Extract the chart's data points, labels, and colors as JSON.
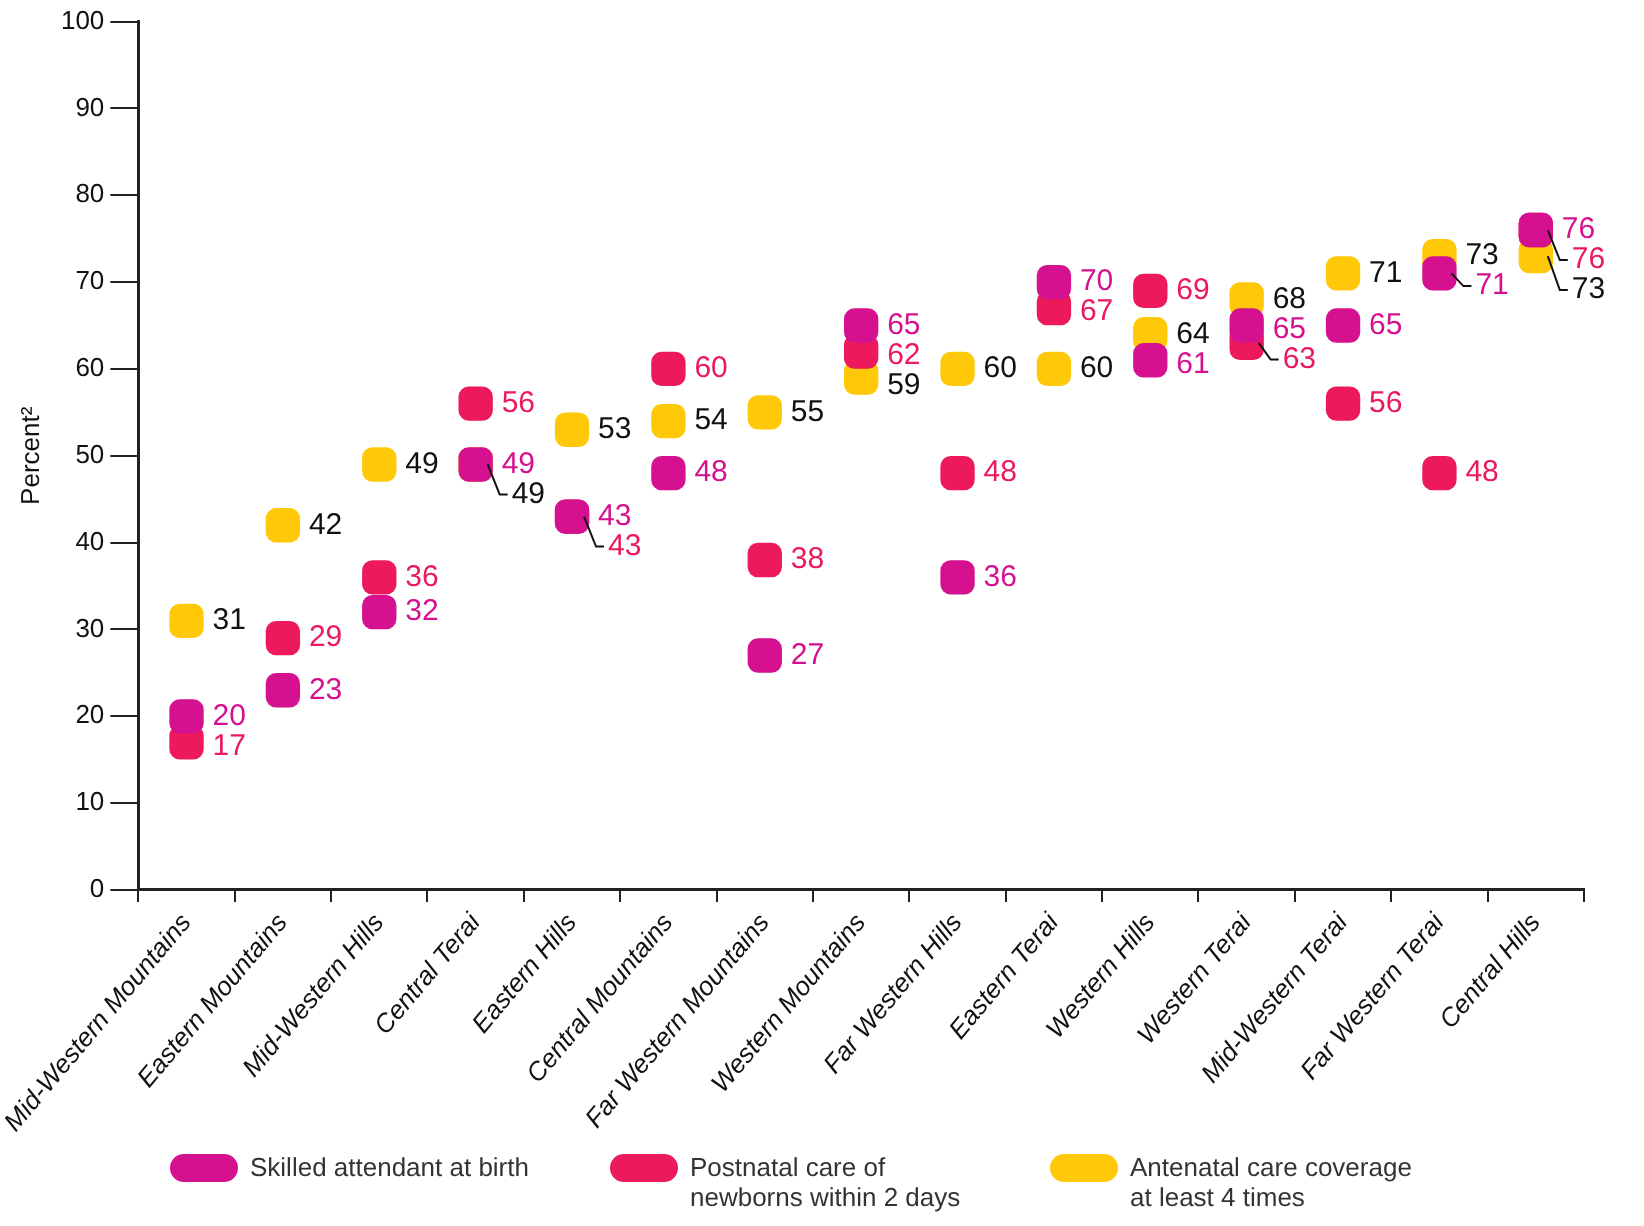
{
  "chart_data": {
    "type": "scatter",
    "ylabel": "Percent²",
    "categories": [
      "Mid-Western Mountains",
      "Eastern Mountains",
      "Mid-Western Hills",
      "Central Terai",
      "Eastern Hills",
      "Central Mountains",
      "Far Western Mountains",
      "Western Mountains",
      "Far Western Hills",
      "Eastern Terai",
      "Western Hills",
      "Western Terai",
      "Mid-Western Terai",
      "Far Western Terai",
      "Central Hills"
    ],
    "series": [
      {
        "name": "Skilled attendant at birth",
        "color": "#d5118f",
        "values": [
          20,
          23,
          32,
          49,
          43,
          48,
          27,
          65,
          36,
          70,
          61,
          65,
          65,
          71,
          76
        ]
      },
      {
        "name": "Postnatal care of newborns within 2 days",
        "color": "#ec1a5a",
        "values": [
          17,
          29,
          36,
          56,
          43,
          60,
          38,
          62,
          48,
          67,
          69,
          63,
          56,
          48,
          76
        ]
      },
      {
        "name": "Antenatal care coverage at least 4 times",
        "color": "#ffc808",
        "values": [
          31,
          42,
          49,
          49,
          53,
          54,
          55,
          59,
          60,
          60,
          64,
          68,
          71,
          73,
          73
        ]
      }
    ],
    "ylim": [
      0,
      100
    ],
    "yticks": [
      0,
      10,
      20,
      30,
      40,
      50,
      60,
      70,
      80,
      90,
      100
    ],
    "grid": false,
    "legend": "bottom",
    "marker": "square",
    "data_labels": true
  }
}
